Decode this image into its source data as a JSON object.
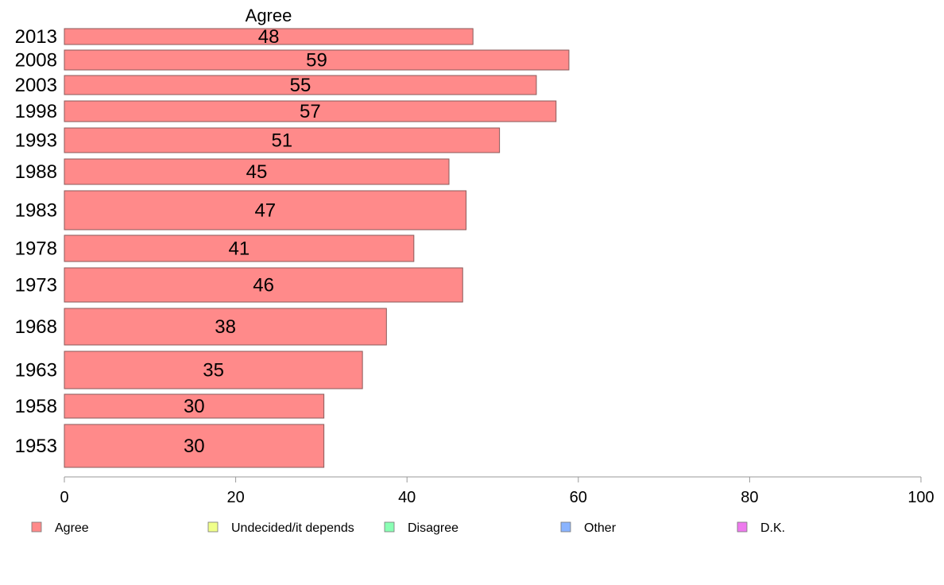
{
  "chart_data": {
    "type": "bar",
    "orientation": "horizontal",
    "title": "Agree",
    "categories": [
      "2013",
      "2008",
      "2003",
      "1998",
      "1993",
      "1988",
      "1983",
      "1978",
      "1973",
      "1968",
      "1963",
      "1958",
      "1953"
    ],
    "series": [
      {
        "name": "Agree",
        "color": "#ff8a8a",
        "values": [
          47.7,
          58.9,
          55.1,
          57.4,
          50.8,
          44.9,
          46.9,
          40.8,
          46.5,
          37.6,
          34.8,
          30.3,
          30.3
        ]
      }
    ],
    "data_labels": [
      "48",
      "59",
      "55",
      "57",
      "51",
      "45",
      "47",
      "41",
      "46",
      "38",
      "35",
      "30",
      "30"
    ],
    "xlim": [
      0,
      100
    ],
    "x_ticks": [
      0,
      20,
      40,
      60,
      80,
      100
    ],
    "grid": false,
    "legend_placement": "bottom",
    "legend": [
      {
        "label": "Agree",
        "color": "#ff8a8a"
      },
      {
        "label": "Undecided/it depends",
        "color": "#f0ff8a"
      },
      {
        "label": "Disagree",
        "color": "#8affb4"
      },
      {
        "label": "Other",
        "color": "#8ab4ff"
      },
      {
        "label": "D.K.",
        "color": "#ee7aee"
      }
    ],
    "bar_border_color": "#8a5a5a"
  }
}
